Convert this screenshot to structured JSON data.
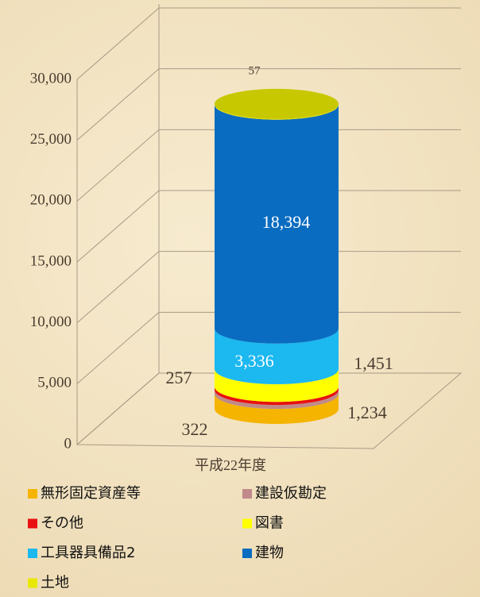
{
  "chart_data": {
    "type": "cylinder-stacked",
    "categories": [
      "平成22年度"
    ],
    "series": [
      {
        "name": "無形固定資産等",
        "color": "#f5b400",
        "values": [
          1234
        ],
        "value_labels": [
          "1,234"
        ]
      },
      {
        "name": "建設仮勘定",
        "color": "#c08a8a",
        "values": [
          322
        ]
      },
      {
        "name": "その他",
        "color": "#e81010",
        "values": [
          257
        ]
      },
      {
        "name": "図書",
        "color": "#ffff00",
        "values": [
          1451
        ],
        "value_labels": [
          "1,451"
        ]
      },
      {
        "name": "工具器具備品2",
        "color": "#1cb8f0",
        "values": [
          3336
        ],
        "value_labels": [
          "3,336"
        ]
      },
      {
        "name": "建物",
        "color": "#0a6cc0",
        "values": [
          18394
        ],
        "value_labels": [
          "18,394"
        ]
      },
      {
        "name": "土地",
        "color": "#e8e800",
        "values": [
          57
        ]
      }
    ],
    "ylim": [
      0,
      30000
    ],
    "yticks": [
      0,
      {
        "value": 5000,
        "label": "5,000"
      },
      {
        "value": 10000,
        "label": "10,000"
      },
      {
        "value": 15000,
        "label": "15,000"
      },
      {
        "value": 20000,
        "label": "20,000"
      },
      {
        "value": 25000,
        "label": "25,000"
      },
      {
        "value": 30000,
        "label": "30,000"
      }
    ],
    "grid": true
  }
}
